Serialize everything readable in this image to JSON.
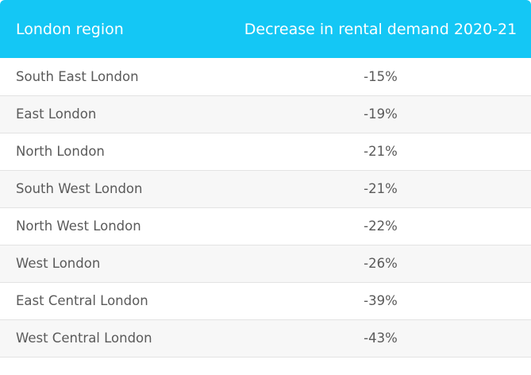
{
  "chart_data": {
    "type": "table",
    "columns": [
      "London region",
      "Decrease in rental demand 2020-21"
    ],
    "rows": [
      {
        "region": "South East London",
        "value": "-15%"
      },
      {
        "region": "East London",
        "value": "-19%"
      },
      {
        "region": "North London",
        "value": "-21%"
      },
      {
        "region": "South West London",
        "value": "-21%"
      },
      {
        "region": "North West London",
        "value": "-22%"
      },
      {
        "region": "West London",
        "value": "-26%"
      },
      {
        "region": "East Central London",
        "value": "-39%"
      },
      {
        "region": "West Central London",
        "value": "-43%"
      }
    ],
    "colors": {
      "header_bg": "#14c7f5",
      "header_text": "#ffffff",
      "row_alt_bg": "#f7f7f7",
      "body_text": "#5a5a5a"
    }
  }
}
